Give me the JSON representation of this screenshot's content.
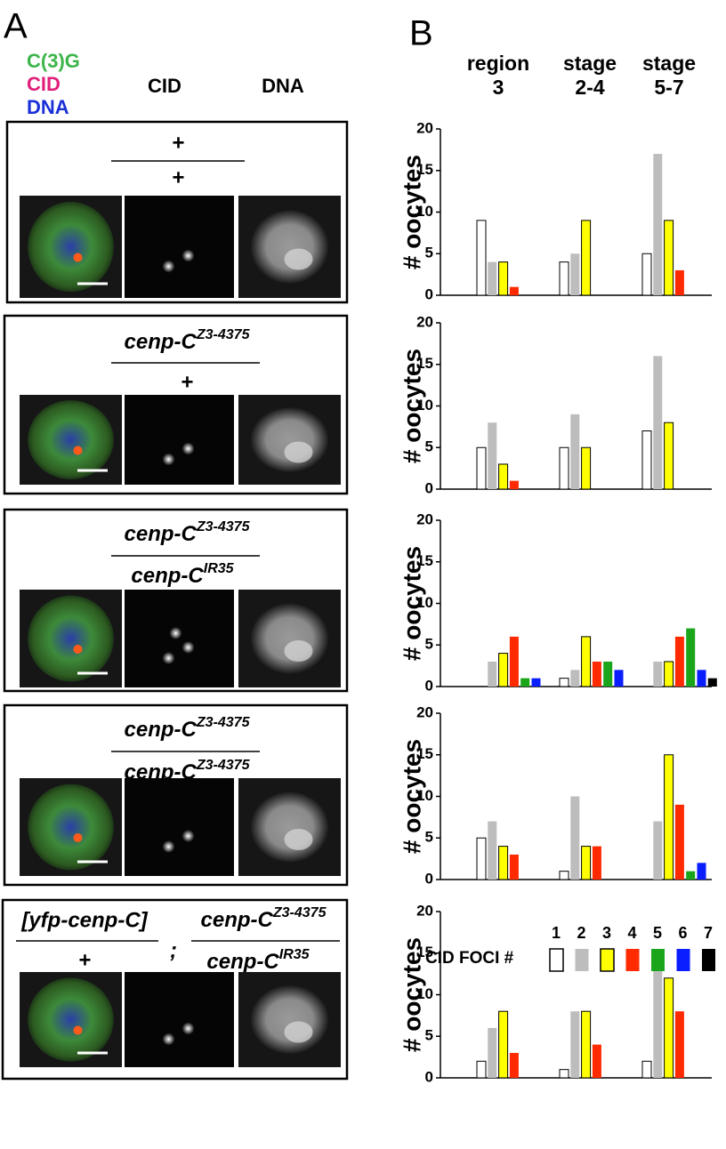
{
  "panel_a": {
    "label": "A",
    "headers": {
      "merge": [
        "C(3)G",
        "CID",
        "DNA"
      ],
      "cid": "CID",
      "dna": "DNA"
    },
    "rows": [
      {
        "numerator": "+",
        "denominator": "+"
      },
      {
        "numerator": {
          "base": "cenp-C",
          "sup": "Z3-4375"
        },
        "denominator": "+"
      },
      {
        "numerator": {
          "base": "cenp-C",
          "sup": "Z3-4375"
        },
        "denominator": {
          "base": "cenp-C",
          "sup": "IR35"
        }
      },
      {
        "numerator": {
          "base": "cenp-C",
          "sup": "Z3-4375"
        },
        "denominator": {
          "base": "cenp-C",
          "sup": "Z3-4375"
        }
      },
      {
        "transgene": {
          "numerator": "[yfp-cenp-C]",
          "denominator": "+"
        },
        "separator": ";",
        "numerator": {
          "base": "cenp-C",
          "sup": "Z3-4375"
        },
        "denominator": {
          "base": "cenp-C",
          "sup": "IR35"
        }
      }
    ]
  },
  "panel_b": {
    "label": "B",
    "legend_title": "CID FOCI #"
  },
  "chart_data": [
    {
      "type": "bar",
      "categories": [
        "region 3",
        "stage 2-4",
        "stage 5-7"
      ],
      "ylabel": "# oocytes",
      "ylim": [
        0,
        20
      ],
      "yticks": [
        0,
        5,
        10,
        15,
        20
      ],
      "series": [
        {
          "name": "1",
          "color": "#ffffff",
          "edgecolor": "#000000",
          "values": [
            9,
            4,
            5
          ]
        },
        {
          "name": "2",
          "color": "#bdbdbd",
          "values": [
            4,
            5,
            17
          ]
        },
        {
          "name": "3",
          "color": "#ffff00",
          "edgecolor": "#000000",
          "values": [
            4,
            9,
            9
          ]
        },
        {
          "name": "4",
          "color": "#ff2a00",
          "values": [
            1,
            null,
            3
          ]
        },
        {
          "name": "5",
          "color": "#1aa51a",
          "values": [
            null,
            null,
            null
          ]
        },
        {
          "name": "6",
          "color": "#0a1eff",
          "values": [
            null,
            null,
            null
          ]
        },
        {
          "name": "7",
          "color": "#000000",
          "values": [
            null,
            null,
            null
          ]
        }
      ]
    },
    {
      "type": "bar",
      "categories": [
        "region 3",
        "stage 2-4",
        "stage 5-7"
      ],
      "ylabel": "# oocytes",
      "ylim": [
        0,
        20
      ],
      "yticks": [
        0,
        5,
        10,
        15,
        20
      ],
      "series": [
        {
          "name": "1",
          "color": "#ffffff",
          "edgecolor": "#000000",
          "values": [
            5,
            5,
            7
          ]
        },
        {
          "name": "2",
          "color": "#bdbdbd",
          "values": [
            8,
            9,
            16
          ]
        },
        {
          "name": "3",
          "color": "#ffff00",
          "edgecolor": "#000000",
          "values": [
            3,
            5,
            8
          ]
        },
        {
          "name": "4",
          "color": "#ff2a00",
          "values": [
            1,
            null,
            null
          ]
        },
        {
          "name": "5",
          "color": "#1aa51a",
          "values": [
            null,
            null,
            null
          ]
        },
        {
          "name": "6",
          "color": "#0a1eff",
          "values": [
            null,
            null,
            null
          ]
        },
        {
          "name": "7",
          "color": "#000000",
          "values": [
            null,
            null,
            null
          ]
        }
      ]
    },
    {
      "type": "bar",
      "categories": [
        "region 3",
        "stage 2-4",
        "stage 5-7"
      ],
      "ylabel": "# oocytes",
      "ylim": [
        0,
        20
      ],
      "yticks": [
        0,
        5,
        10,
        15,
        20
      ],
      "series": [
        {
          "name": "1",
          "color": "#ffffff",
          "edgecolor": "#000000",
          "values": [
            null,
            1,
            null
          ]
        },
        {
          "name": "2",
          "color": "#bdbdbd",
          "values": [
            3,
            2,
            3
          ]
        },
        {
          "name": "3",
          "color": "#ffff00",
          "edgecolor": "#000000",
          "values": [
            4,
            6,
            3
          ]
        },
        {
          "name": "4",
          "color": "#ff2a00",
          "values": [
            6,
            3,
            6
          ]
        },
        {
          "name": "5",
          "color": "#1aa51a",
          "values": [
            1,
            3,
            7
          ]
        },
        {
          "name": "6",
          "color": "#0a1eff",
          "values": [
            1,
            2,
            2
          ]
        },
        {
          "name": "7",
          "color": "#000000",
          "values": [
            null,
            null,
            1
          ]
        }
      ]
    },
    {
      "type": "bar",
      "categories": [
        "region 3",
        "stage 2-4",
        "stage 5-7"
      ],
      "ylabel": "# oocytes",
      "ylim": [
        0,
        20
      ],
      "yticks": [
        0,
        5,
        10,
        15,
        20
      ],
      "series": [
        {
          "name": "1",
          "color": "#ffffff",
          "edgecolor": "#000000",
          "values": [
            5,
            1,
            null
          ]
        },
        {
          "name": "2",
          "color": "#bdbdbd",
          "values": [
            7,
            10,
            7
          ]
        },
        {
          "name": "3",
          "color": "#ffff00",
          "edgecolor": "#000000",
          "values": [
            4,
            4,
            15
          ]
        },
        {
          "name": "4",
          "color": "#ff2a00",
          "values": [
            3,
            4,
            9
          ]
        },
        {
          "name": "5",
          "color": "#1aa51a",
          "values": [
            null,
            null,
            1
          ]
        },
        {
          "name": "6",
          "color": "#0a1eff",
          "values": [
            null,
            null,
            2
          ]
        },
        {
          "name": "7",
          "color": "#000000",
          "values": [
            null,
            null,
            null
          ]
        }
      ]
    },
    {
      "type": "bar",
      "categories": [
        "region 3",
        "stage 2-4",
        "stage 5-7"
      ],
      "ylabel": "# oocytes",
      "ylim": [
        0,
        20
      ],
      "yticks": [
        0,
        5,
        10,
        15,
        20
      ],
      "series": [
        {
          "name": "1",
          "color": "#ffffff",
          "edgecolor": "#000000",
          "values": [
            2,
            1,
            2
          ]
        },
        {
          "name": "2",
          "color": "#bdbdbd",
          "values": [
            6,
            8,
            13
          ]
        },
        {
          "name": "3",
          "color": "#ffff00",
          "edgecolor": "#000000",
          "values": [
            8,
            8,
            12
          ]
        },
        {
          "name": "4",
          "color": "#ff2a00",
          "values": [
            3,
            4,
            8
          ]
        },
        {
          "name": "5",
          "color": "#1aa51a",
          "values": [
            null,
            null,
            null
          ]
        },
        {
          "name": "6",
          "color": "#0a1eff",
          "values": [
            null,
            null,
            null
          ]
        },
        {
          "name": "7",
          "color": "#000000",
          "values": [
            null,
            null,
            null
          ]
        }
      ]
    }
  ]
}
